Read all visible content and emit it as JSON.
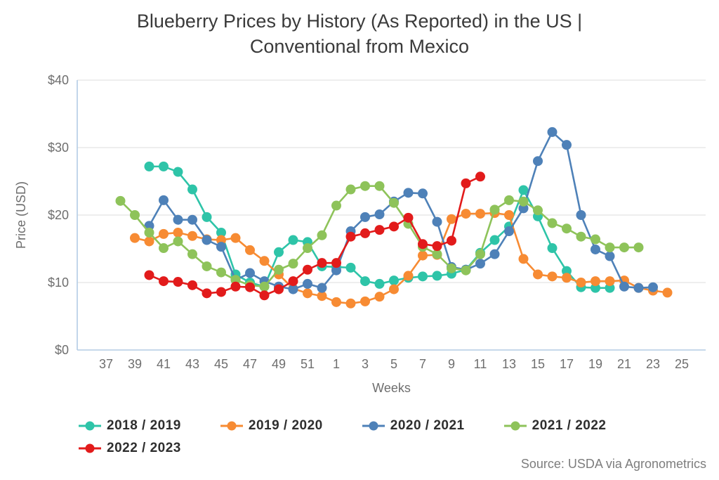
{
  "title": {
    "line1": "Blueberry Prices by History (As Reported) in the US |",
    "line2": "Conventional from Mexico"
  },
  "source": "Source: USDA via Agronometrics",
  "chart_data": {
    "type": "line",
    "title": "Blueberry Prices by History (As Reported) in the US | Conventional from Mexico",
    "xlabel": "Weeks",
    "ylabel": "Price (USD)",
    "ylim": [
      0,
      40
    ],
    "grid": "horizontal",
    "legend_position": "bottom-left",
    "grid_color": "#e9e9e9",
    "axis_color": "#b3cce4",
    "tick_color": "#6e6e6e",
    "y_ticks": [
      "$0",
      "$10",
      "$20",
      "$30",
      "$40"
    ],
    "y_tick_values": [
      0,
      10,
      20,
      30,
      40
    ],
    "x_tick_labels": [
      "37",
      "39",
      "41",
      "43",
      "45",
      "47",
      "49",
      "51",
      "1",
      "3",
      "5",
      "7",
      "9",
      "11",
      "13",
      "15",
      "17",
      "19",
      "21",
      "23",
      "25"
    ],
    "week_order": [
      37,
      38,
      39,
      40,
      41,
      42,
      43,
      44,
      45,
      46,
      47,
      48,
      49,
      50,
      51,
      52,
      1,
      2,
      3,
      4,
      5,
      6,
      7,
      8,
      9,
      10,
      11,
      12,
      13,
      14,
      15,
      16,
      17,
      18,
      19,
      20,
      21,
      22,
      23,
      24,
      25
    ],
    "series": [
      {
        "name": "2018 / 2019",
        "color": "#2ec4a8",
        "weeks": [
          40,
          41,
          42,
          43,
          44,
          45,
          46,
          47,
          48,
          49,
          50,
          51,
          52,
          1,
          2,
          3,
          4,
          5,
          6,
          7,
          8,
          9,
          10,
          11,
          12,
          13,
          14,
          15,
          16,
          17,
          18,
          19,
          20
        ],
        "values": [
          27.2,
          27.2,
          26.4,
          23.8,
          19.7,
          17.4,
          11.2,
          10.0,
          9.4,
          14.5,
          16.3,
          16.0,
          12.4,
          12.3,
          12.2,
          10.2,
          9.8,
          10.3,
          10.7,
          10.9,
          11.0,
          11.3,
          11.9,
          14.4,
          16.3,
          18.3,
          23.7,
          19.8,
          15.1,
          11.7,
          9.3,
          9.2,
          9.2
        ]
      },
      {
        "name": "2019 / 2020",
        "color": "#f78b33",
        "weeks": [
          39,
          40,
          41,
          42,
          43,
          44,
          45,
          46,
          47,
          48,
          49,
          50,
          51,
          52,
          1,
          2,
          3,
          4,
          5,
          6,
          7,
          8,
          9,
          10,
          11,
          12,
          13,
          14,
          15,
          16,
          17,
          18,
          19,
          20,
          21,
          22,
          23,
          24
        ],
        "values": [
          16.6,
          16.1,
          17.2,
          17.4,
          16.9,
          16.4,
          16.3,
          16.6,
          14.8,
          13.2,
          11.2,
          9.1,
          8.4,
          8.0,
          7.1,
          6.9,
          7.2,
          7.9,
          9.0,
          11.0,
          14.0,
          14.1,
          19.4,
          20.2,
          20.2,
          20.3,
          20.0,
          13.5,
          11.2,
          10.9,
          10.7,
          10.0,
          10.2,
          10.2,
          10.3,
          9.2,
          8.8,
          8.5
        ]
      },
      {
        "name": "2020 / 2021",
        "color": "#4e81b8",
        "weeks": [
          40,
          41,
          42,
          43,
          44,
          45,
          46,
          47,
          48,
          49,
          50,
          51,
          52,
          1,
          2,
          3,
          4,
          5,
          6,
          7,
          8,
          9,
          10,
          11,
          12,
          13,
          14,
          15,
          16,
          17,
          18,
          19,
          20,
          21,
          22,
          23
        ],
        "values": [
          18.4,
          22.2,
          19.3,
          19.3,
          16.3,
          15.3,
          10.4,
          11.4,
          10.2,
          9.4,
          9.0,
          9.8,
          9.2,
          11.8,
          17.6,
          19.7,
          20.1,
          22.0,
          23.3,
          23.2,
          19.0,
          12.3,
          11.9,
          12.8,
          14.2,
          17.6,
          21.0,
          28.0,
          32.3,
          30.4,
          20.0,
          14.9,
          13.9,
          9.4,
          9.2,
          9.3
        ]
      },
      {
        "name": "2021 / 2022",
        "color": "#8ec35a",
        "weeks": [
          38,
          39,
          40,
          41,
          42,
          43,
          44,
          45,
          46,
          47,
          48,
          49,
          50,
          51,
          52,
          1,
          2,
          3,
          4,
          5,
          6,
          7,
          8,
          9,
          10,
          11,
          12,
          13,
          14,
          15,
          16,
          17,
          18,
          19,
          20,
          21,
          22
        ],
        "values": [
          22.1,
          20.0,
          17.4,
          15.1,
          16.1,
          14.2,
          12.4,
          11.5,
          10.4,
          9.6,
          9.4,
          11.9,
          12.8,
          15.1,
          17.0,
          21.4,
          23.8,
          24.3,
          24.3,
          21.8,
          18.7,
          15.3,
          14.2,
          12.1,
          11.8,
          14.2,
          20.8,
          22.2,
          22.0,
          20.7,
          18.8,
          18.0,
          16.8,
          16.4,
          15.2,
          15.2,
          15.2
        ]
      },
      {
        "name": "2022 / 2023",
        "color": "#e21b1b",
        "weeks": [
          40,
          41,
          42,
          43,
          44,
          45,
          46,
          47,
          48,
          49,
          50,
          51,
          52,
          1,
          2,
          3,
          4,
          5,
          6,
          7,
          8,
          9,
          10,
          11
        ],
        "values": [
          11.1,
          10.2,
          10.1,
          9.6,
          8.4,
          8.6,
          9.4,
          9.3,
          8.1,
          9.0,
          10.2,
          11.9,
          12.9,
          12.9,
          16.8,
          17.3,
          17.8,
          18.3,
          19.6,
          15.7,
          15.4,
          16.2,
          24.7,
          25.7
        ]
      }
    ]
  }
}
